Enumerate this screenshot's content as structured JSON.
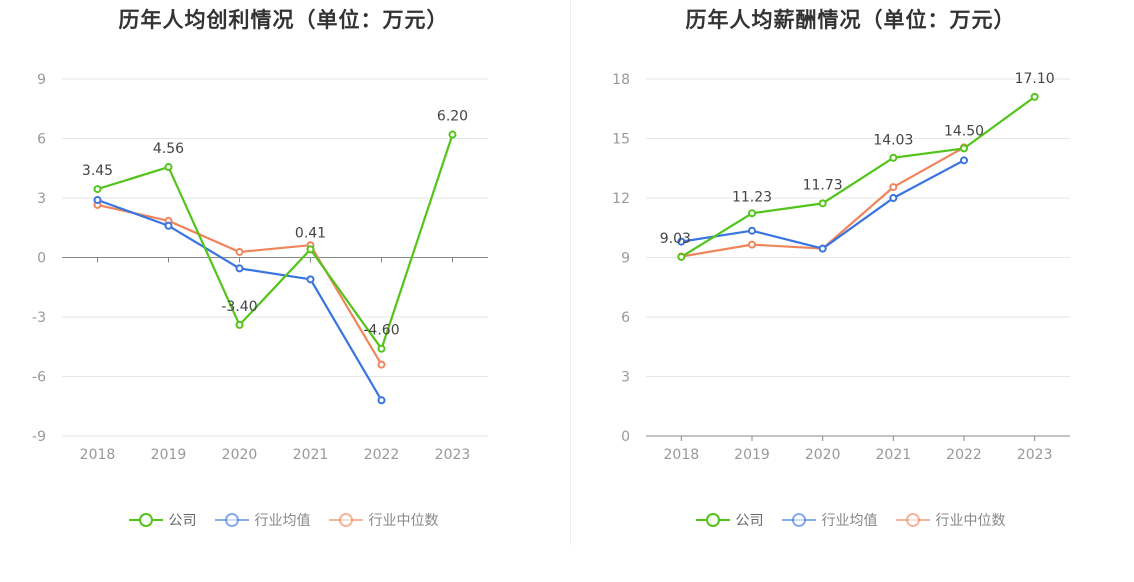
{
  "chart_data": [
    {
      "type": "line",
      "title": "历年人均创利情况（单位：万元）",
      "categories": [
        "2018",
        "2019",
        "2020",
        "2021",
        "2022",
        "2023"
      ],
      "ylim": [
        -9,
        9
      ],
      "yticks": [
        9,
        6,
        3,
        0,
        -3,
        -6,
        -9
      ],
      "series": [
        {
          "name": "公司",
          "color": "#52c41a",
          "values": [
            3.45,
            4.56,
            -3.4,
            0.41,
            -4.6,
            6.2
          ],
          "labels": [
            "3.45",
            "4.56",
            "-3.40",
            "0.41",
            "-4.60",
            "6.20"
          ]
        },
        {
          "name": "行业均值",
          "color": "#3a74e0",
          "values": [
            2.9,
            1.6,
            -0.55,
            -1.1,
            -7.2,
            null
          ]
        },
        {
          "name": "行业中位数",
          "color": "#f0845a",
          "values": [
            2.65,
            1.85,
            0.28,
            0.62,
            -5.4,
            null
          ]
        }
      ],
      "legend": "bottom-center",
      "grid": true
    },
    {
      "type": "line",
      "title": "历年人均薪酬情况（单位：万元）",
      "categories": [
        "2018",
        "2019",
        "2020",
        "2021",
        "2022",
        "2023"
      ],
      "ylim": [
        0,
        18
      ],
      "yticks": [
        18,
        15,
        12,
        9,
        6,
        3,
        0
      ],
      "series": [
        {
          "name": "公司",
          "color": "#52c41a",
          "values": [
            9.03,
            11.23,
            11.73,
            14.03,
            14.5,
            17.1
          ],
          "labels": [
            "9.03",
            "11.23",
            "11.73",
            "14.03",
            "14.50",
            "17.10"
          ]
        },
        {
          "name": "行业均值",
          "color": "#3a74e0",
          "values": [
            9.8,
            10.35,
            9.45,
            12.0,
            13.9,
            null
          ]
        },
        {
          "name": "行业中位数",
          "color": "#f0845a",
          "values": [
            9.05,
            9.65,
            9.45,
            12.55,
            14.55,
            null
          ]
        }
      ],
      "legend": "bottom-center",
      "grid": true
    }
  ]
}
